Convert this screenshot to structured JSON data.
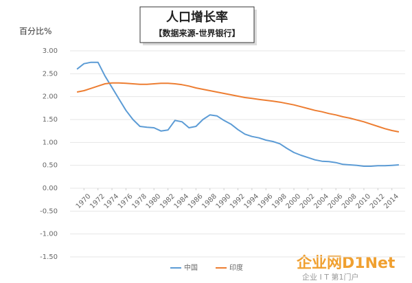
{
  "chart_data": {
    "type": "line",
    "title": "人口增长率",
    "subtitle": "【数据来源-世界银行】",
    "y_label": "百分比%",
    "watermark": "企业网D1Net",
    "watermark_sub": "企业 I T 第1门户",
    "x": [
      1969,
      1970,
      1971,
      1972,
      1973,
      1974,
      1975,
      1976,
      1977,
      1978,
      1979,
      1980,
      1981,
      1982,
      1983,
      1984,
      1985,
      1986,
      1987,
      1988,
      1989,
      1990,
      1991,
      1992,
      1993,
      1994,
      1995,
      1996,
      1997,
      1998,
      1999,
      2000,
      2001,
      2002,
      2003,
      2004,
      2005,
      2006,
      2007,
      2008,
      2009,
      2010,
      2011,
      2012,
      2013,
      2014,
      2015
    ],
    "series": [
      {
        "name": "中国",
        "color": "#5b9bd5",
        "values": [
          2.6,
          2.72,
          2.75,
          2.75,
          2.45,
          2.2,
          1.95,
          1.7,
          1.5,
          1.35,
          1.33,
          1.32,
          1.25,
          1.27,
          1.48,
          1.45,
          1.32,
          1.35,
          1.5,
          1.6,
          1.58,
          1.48,
          1.4,
          1.28,
          1.18,
          1.13,
          1.1,
          1.05,
          1.02,
          0.97,
          0.87,
          0.78,
          0.72,
          0.67,
          0.62,
          0.59,
          0.58,
          0.56,
          0.52,
          0.51,
          0.5,
          0.48,
          0.48,
          0.49,
          0.49,
          0.5,
          0.51
        ]
      },
      {
        "name": "印度",
        "color": "#ed7d31",
        "values": [
          2.1,
          2.13,
          2.18,
          2.23,
          2.28,
          2.3,
          2.3,
          2.29,
          2.28,
          2.27,
          2.27,
          2.28,
          2.29,
          2.29,
          2.28,
          2.26,
          2.23,
          2.19,
          2.16,
          2.13,
          2.1,
          2.07,
          2.04,
          2.01,
          1.98,
          1.96,
          1.94,
          1.92,
          1.9,
          1.88,
          1.85,
          1.82,
          1.78,
          1.74,
          1.7,
          1.67,
          1.63,
          1.6,
          1.56,
          1.53,
          1.49,
          1.45,
          1.4,
          1.35,
          1.3,
          1.26,
          1.23
        ]
      }
    ],
    "xlim": [
      1968.5,
      2015.5
    ],
    "xticks": [
      1970,
      1972,
      1974,
      1976,
      1978,
      1980,
      1982,
      1984,
      1986,
      1988,
      1990,
      1992,
      1994,
      1996,
      1998,
      2000,
      2002,
      2004,
      2006,
      2008,
      2010,
      2012,
      2014
    ],
    "ylim": [
      -1.5,
      3.0
    ],
    "yticks": [
      {
        "value": -1.5,
        "label": "-1.50"
      },
      {
        "value": -1,
        "label": "-1.00"
      },
      {
        "value": -0.5,
        "label": "-0.50"
      },
      {
        "value": 0,
        "label": "0.00"
      },
      {
        "value": 0.5,
        "label": "0.50"
      },
      {
        "value": 1,
        "label": "1.00"
      },
      {
        "value": 1.5,
        "label": "1.50"
      },
      {
        "value": 2,
        "label": "2.00"
      },
      {
        "value": 2.5,
        "label": "2.50"
      },
      {
        "value": 3,
        "label": "3.00"
      }
    ],
    "grid": true
  }
}
